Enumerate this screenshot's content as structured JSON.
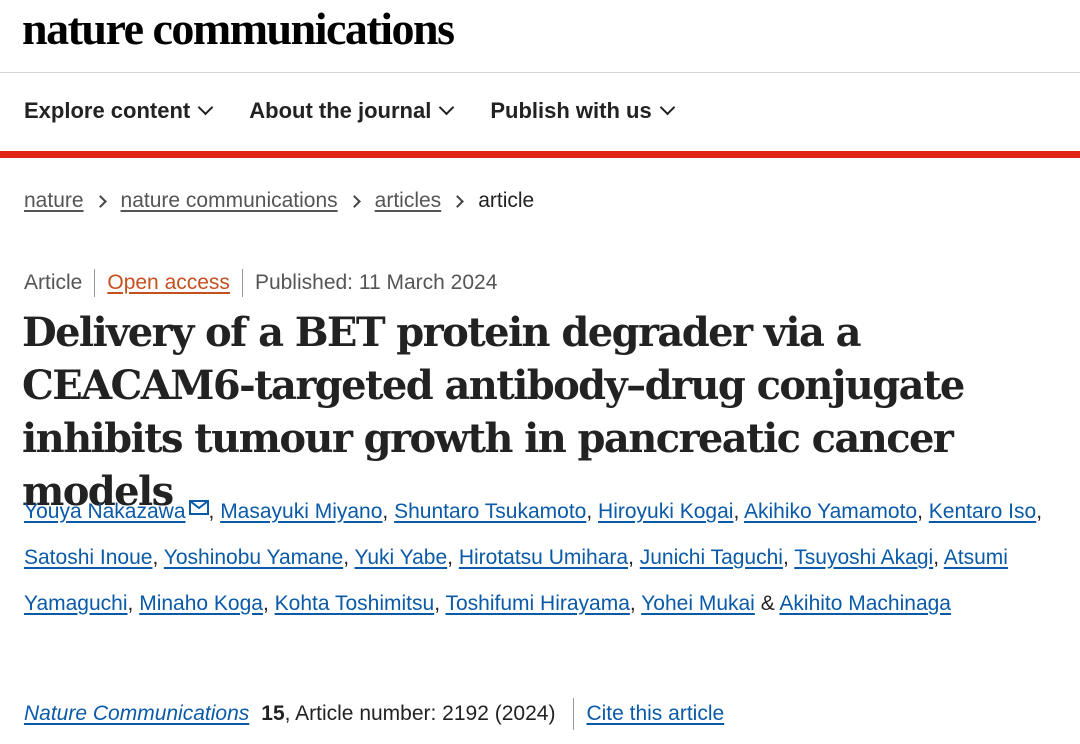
{
  "site_title": "nature communications",
  "nav": [
    "Explore content",
    "About the journal",
    "Publish with us"
  ],
  "breadcrumbs": [
    "nature",
    "nature communications",
    "articles",
    "article"
  ],
  "meta": {
    "type": "Article",
    "access": "Open access",
    "published": "Published: 11 March 2024"
  },
  "title": "Delivery of a BET protein degrader via a CEACAM6-targeted antibody–drug conjugate inhibits tumour growth in pancreatic cancer models",
  "authors": [
    "Youya Nakazawa",
    "Masayuki Miyano",
    "Shuntaro Tsukamoto",
    "Hiroyuki Kogai",
    "Akihiko Yamamoto",
    "Kentaro Iso",
    "Satoshi Inoue",
    "Yoshinobu Yamane",
    "Yuki Yabe",
    "Hirotatsu Umihara",
    "Junichi Taguchi",
    "Tsuyoshi Akagi",
    "Atsumi Yamaguchi",
    "Minaho Koga",
    "Kohta Toshimitsu",
    "Toshifumi Hirayama",
    "Yohei Mukai",
    "Akihito Machinaga"
  ],
  "author_separator": ",",
  "last_separator": "&",
  "citation": {
    "journal": "Nature Communications",
    "volume": "15",
    "details": ", Article number: 2192 (2024)",
    "cite_link": "Cite this article"
  }
}
